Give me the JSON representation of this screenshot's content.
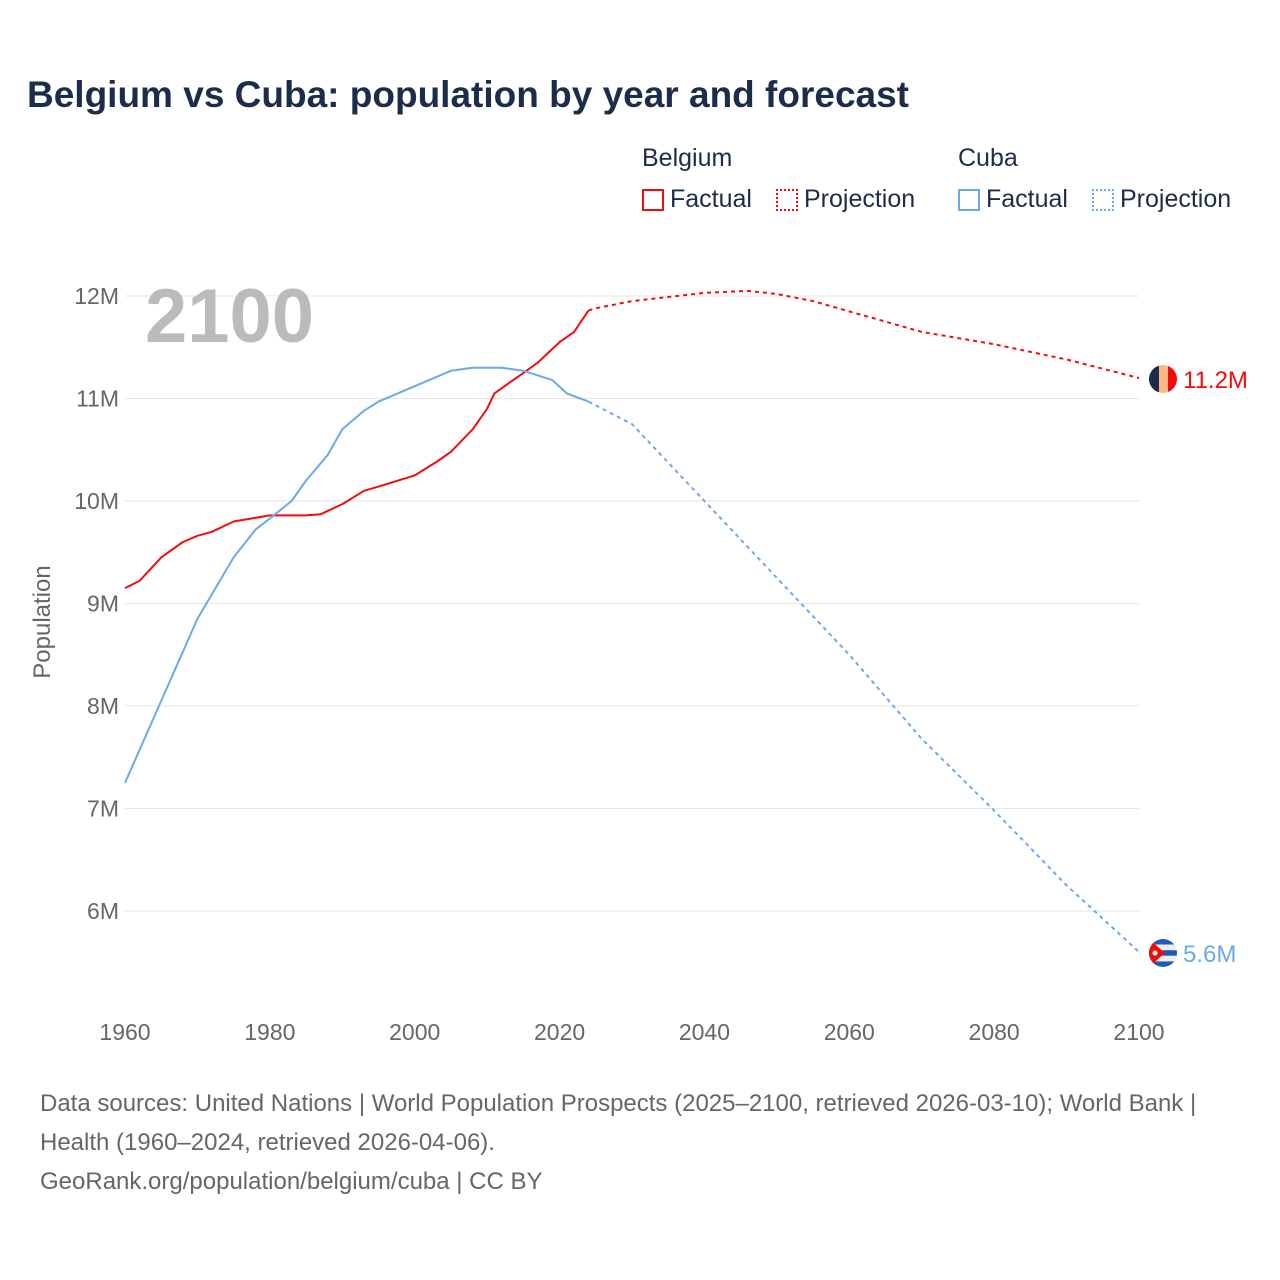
{
  "title": "Belgium vs Cuba: population by year and forecast",
  "legend": {
    "groups": [
      {
        "name": "Belgium",
        "factual": "Factual",
        "projection": "Projection",
        "color": "#f20d0d"
      },
      {
        "name": "Cuba",
        "factual": "Factual",
        "projection": "Projection",
        "color": "#6aaae8"
      }
    ]
  },
  "year_overlay": "2100",
  "footer": {
    "sources": "Data sources: United Nations | World Population Prospects (2025–2100, retrieved 2026-03-10); World Bank | Health (1960–2024, retrieved 2026-04-06).",
    "credit": "GeoRank.org/population/belgium/cuba | CC BY"
  },
  "chart_data": {
    "type": "line",
    "title": "Belgium vs Cuba: population by year and forecast",
    "xlabel": "",
    "ylabel": "Population",
    "xlim": [
      1960,
      2100
    ],
    "ylim": [
      5.3,
      12.3
    ],
    "x_ticks": [
      "1960",
      "1980",
      "2000",
      "2020",
      "2040",
      "2060",
      "2080",
      "2100"
    ],
    "x_tick_values": [
      1960,
      1980,
      2000,
      2020,
      2040,
      2060,
      2080,
      2100
    ],
    "y_ticks": [
      "6M",
      "7M",
      "8M",
      "9M",
      "10M",
      "11M",
      "12M"
    ],
    "y_tick_values": [
      6,
      7,
      8,
      9,
      10,
      11,
      12
    ],
    "grid": true,
    "legend_position": "top-right",
    "series": [
      {
        "name": "Belgium Factual",
        "color": "#f20d0d",
        "dash": false,
        "x": [
          1960,
          1962,
          1965,
          1968,
          1970,
          1972,
          1975,
          1980,
          1985,
          1987,
          1990,
          1993,
          1995,
          2000,
          2003,
          2005,
          2008,
          2010,
          2011,
          2013,
          2015,
          2017,
          2020,
          2022,
          2024
        ],
        "y": [
          9.15,
          9.22,
          9.45,
          9.6,
          9.66,
          9.7,
          9.8,
          9.86,
          9.86,
          9.87,
          9.97,
          10.1,
          10.14,
          10.25,
          10.38,
          10.48,
          10.7,
          10.9,
          11.05,
          11.15,
          11.25,
          11.35,
          11.55,
          11.65,
          11.86
        ]
      },
      {
        "name": "Belgium Projection",
        "color": "#f20d0d",
        "dash": true,
        "x": [
          2024,
          2025,
          2030,
          2040,
          2046,
          2050,
          2055,
          2060,
          2065,
          2070,
          2080,
          2090,
          2100
        ],
        "y": [
          11.86,
          11.88,
          11.95,
          12.03,
          12.05,
          12.02,
          11.95,
          11.85,
          11.75,
          11.65,
          11.53,
          11.38,
          11.2
        ]
      },
      {
        "name": "Cuba Factual",
        "color": "#6aaae8",
        "dash": false,
        "x": [
          1960,
          1965,
          1970,
          1975,
          1978,
          1980,
          1983,
          1985,
          1988,
          1990,
          1993,
          1995,
          2000,
          2005,
          2008,
          2012,
          2015,
          2019,
          2021,
          2024
        ],
        "y": [
          7.25,
          8.05,
          8.85,
          9.45,
          9.72,
          9.83,
          10.0,
          10.2,
          10.45,
          10.7,
          10.88,
          10.97,
          11.12,
          11.27,
          11.3,
          11.3,
          11.27,
          11.18,
          11.05,
          10.97
        ]
      },
      {
        "name": "Cuba Projection",
        "color": "#6aaae8",
        "dash": true,
        "x": [
          2024,
          2030,
          2040,
          2050,
          2060,
          2070,
          2080,
          2090,
          2100
        ],
        "y": [
          10.97,
          10.75,
          10.0,
          9.25,
          8.5,
          7.68,
          6.98,
          6.25,
          5.6
        ]
      }
    ],
    "end_labels": [
      {
        "country": "Belgium",
        "label": "11.2M",
        "value": 11.2,
        "color": "#f20d0d",
        "flag": "belgium-flag"
      },
      {
        "country": "Cuba",
        "label": "5.6M",
        "value": 5.6,
        "color": "#6aaae8",
        "flag": "cuba-flag"
      }
    ]
  }
}
